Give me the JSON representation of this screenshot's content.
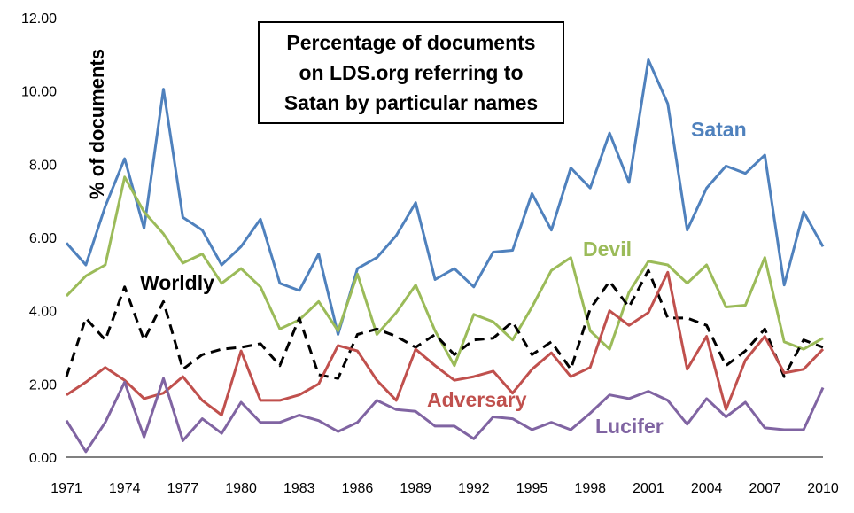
{
  "chart_data": {
    "type": "line",
    "title": "Percentage of documents\non LDS.org referring to\nSatan by particular names",
    "ylabel": "% of documents",
    "xlabel": "",
    "ylim": [
      0,
      12
    ],
    "yticks": [
      "0.00",
      "2.00",
      "4.00",
      "6.00",
      "8.00",
      "10.00",
      "12.00"
    ],
    "xticks": [
      "1971",
      "1974",
      "1977",
      "1980",
      "1983",
      "1986",
      "1989",
      "1992",
      "1995",
      "1998",
      "2001",
      "2004",
      "2007",
      "2010"
    ],
    "x": [
      1971,
      1972,
      1973,
      1974,
      1975,
      1976,
      1977,
      1978,
      1979,
      1980,
      1981,
      1982,
      1983,
      1984,
      1985,
      1986,
      1987,
      1988,
      1989,
      1990,
      1991,
      1992,
      1993,
      1994,
      1995,
      1996,
      1997,
      1998,
      1999,
      2000,
      2001,
      2002,
      2003,
      2004,
      2005,
      2006,
      2007,
      2008,
      2009,
      2010
    ],
    "grid": false,
    "series": [
      {
        "name": "Satan",
        "color": "#4f81bd",
        "dashed": false,
        "values": [
          5.85,
          5.25,
          6.85,
          8.15,
          6.25,
          10.05,
          6.55,
          6.2,
          5.25,
          5.75,
          6.5,
          4.75,
          4.55,
          5.55,
          3.35,
          5.15,
          5.45,
          6.05,
          6.95,
          4.85,
          5.15,
          4.65,
          5.6,
          5.65,
          7.2,
          6.2,
          7.9,
          7.35,
          8.85,
          7.5,
          10.85,
          9.65,
          6.2,
          7.35,
          7.95,
          7.75,
          8.25,
          4.7,
          6.7,
          5.75
        ]
      },
      {
        "name": "Devil",
        "color": "#9bbb59",
        "dashed": false,
        "values": [
          4.4,
          4.95,
          5.25,
          7.65,
          6.7,
          6.1,
          5.3,
          5.55,
          4.75,
          5.15,
          4.65,
          3.5,
          3.75,
          4.25,
          3.45,
          5.0,
          3.35,
          3.95,
          4.7,
          3.45,
          2.5,
          3.9,
          3.7,
          3.2,
          4.1,
          5.1,
          5.45,
          3.45,
          2.95,
          4.5,
          5.35,
          5.25,
          4.75,
          5.25,
          4.1,
          4.15,
          5.45,
          3.15,
          2.95,
          3.25
        ]
      },
      {
        "name": "Worldly",
        "color": "#000000",
        "dashed": true,
        "values": [
          2.2,
          3.8,
          3.2,
          4.65,
          3.2,
          4.25,
          2.4,
          2.8,
          2.95,
          3.0,
          3.1,
          2.5,
          3.8,
          2.25,
          2.15,
          3.35,
          3.5,
          3.3,
          3.0,
          3.35,
          2.8,
          3.2,
          3.25,
          3.7,
          2.8,
          3.15,
          2.4,
          4.05,
          4.8,
          4.1,
          5.1,
          3.8,
          3.8,
          3.6,
          2.5,
          2.9,
          3.5,
          2.2,
          3.2,
          3.0
        ]
      },
      {
        "name": "Adversary",
        "color": "#c0504d",
        "dashed": false,
        "values": [
          1.7,
          2.05,
          2.45,
          2.1,
          1.6,
          1.75,
          2.2,
          1.55,
          1.15,
          2.9,
          1.55,
          1.55,
          1.7,
          2.0,
          3.05,
          2.9,
          2.1,
          1.55,
          2.95,
          2.5,
          2.1,
          2.2,
          2.35,
          1.75,
          2.4,
          2.85,
          2.2,
          2.45,
          4.0,
          3.6,
          3.95,
          5.05,
          2.4,
          3.3,
          1.3,
          2.65,
          3.3,
          2.3,
          2.4,
          2.95
        ]
      },
      {
        "name": "Lucifer",
        "color": "#8064a2",
        "dashed": false,
        "values": [
          1.0,
          0.15,
          0.95,
          2.05,
          0.55,
          2.15,
          0.45,
          1.05,
          0.65,
          1.5,
          0.95,
          0.95,
          1.15,
          1.0,
          0.7,
          0.95,
          1.55,
          1.3,
          1.25,
          0.85,
          0.85,
          0.5,
          1.1,
          1.05,
          0.75,
          0.95,
          0.75,
          1.2,
          1.7,
          1.6,
          1.8,
          1.55,
          0.9,
          1.6,
          1.1,
          1.5,
          0.8,
          0.75,
          0.75,
          1.9
        ]
      }
    ]
  }
}
